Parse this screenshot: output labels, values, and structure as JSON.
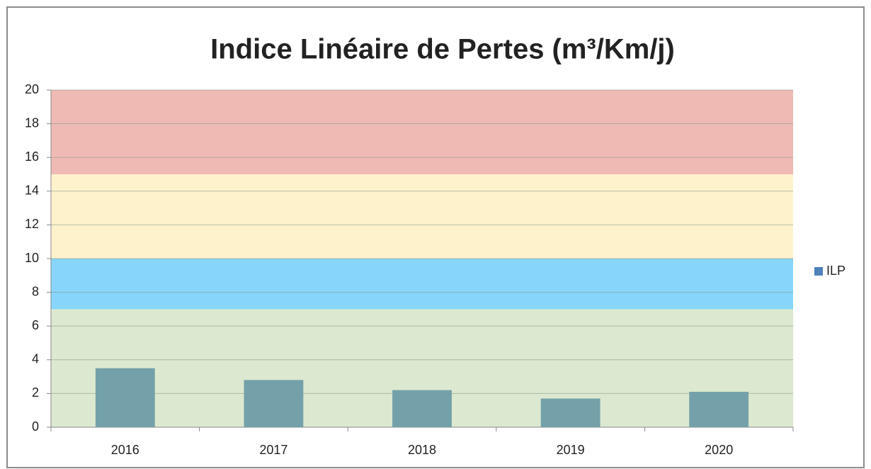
{
  "chart_data": {
    "type": "bar",
    "title": "Indice Linéaire de Pertes (m³/Km/j)",
    "categories": [
      "2016",
      "2017",
      "2018",
      "2019",
      "2020"
    ],
    "series": [
      {
        "name": "ILP",
        "color": "#74a1a9",
        "legend_color": "#4f81bd",
        "values": [
          3.5,
          2.8,
          2.2,
          1.7,
          2.1
        ]
      }
    ],
    "bands": [
      {
        "from": 0,
        "to": 7,
        "color": "#dce9d0"
      },
      {
        "from": 7,
        "to": 10,
        "color": "#87d5fb"
      },
      {
        "from": 10,
        "to": 15,
        "color": "#fef2cc"
      },
      {
        "from": 15,
        "to": 20,
        "color": "#efbab4"
      }
    ],
    "ylim": [
      0,
      20
    ],
    "yticks": [
      0,
      2,
      4,
      6,
      8,
      10,
      12,
      14,
      16,
      18,
      20
    ],
    "grid": true,
    "legend": "right"
  }
}
